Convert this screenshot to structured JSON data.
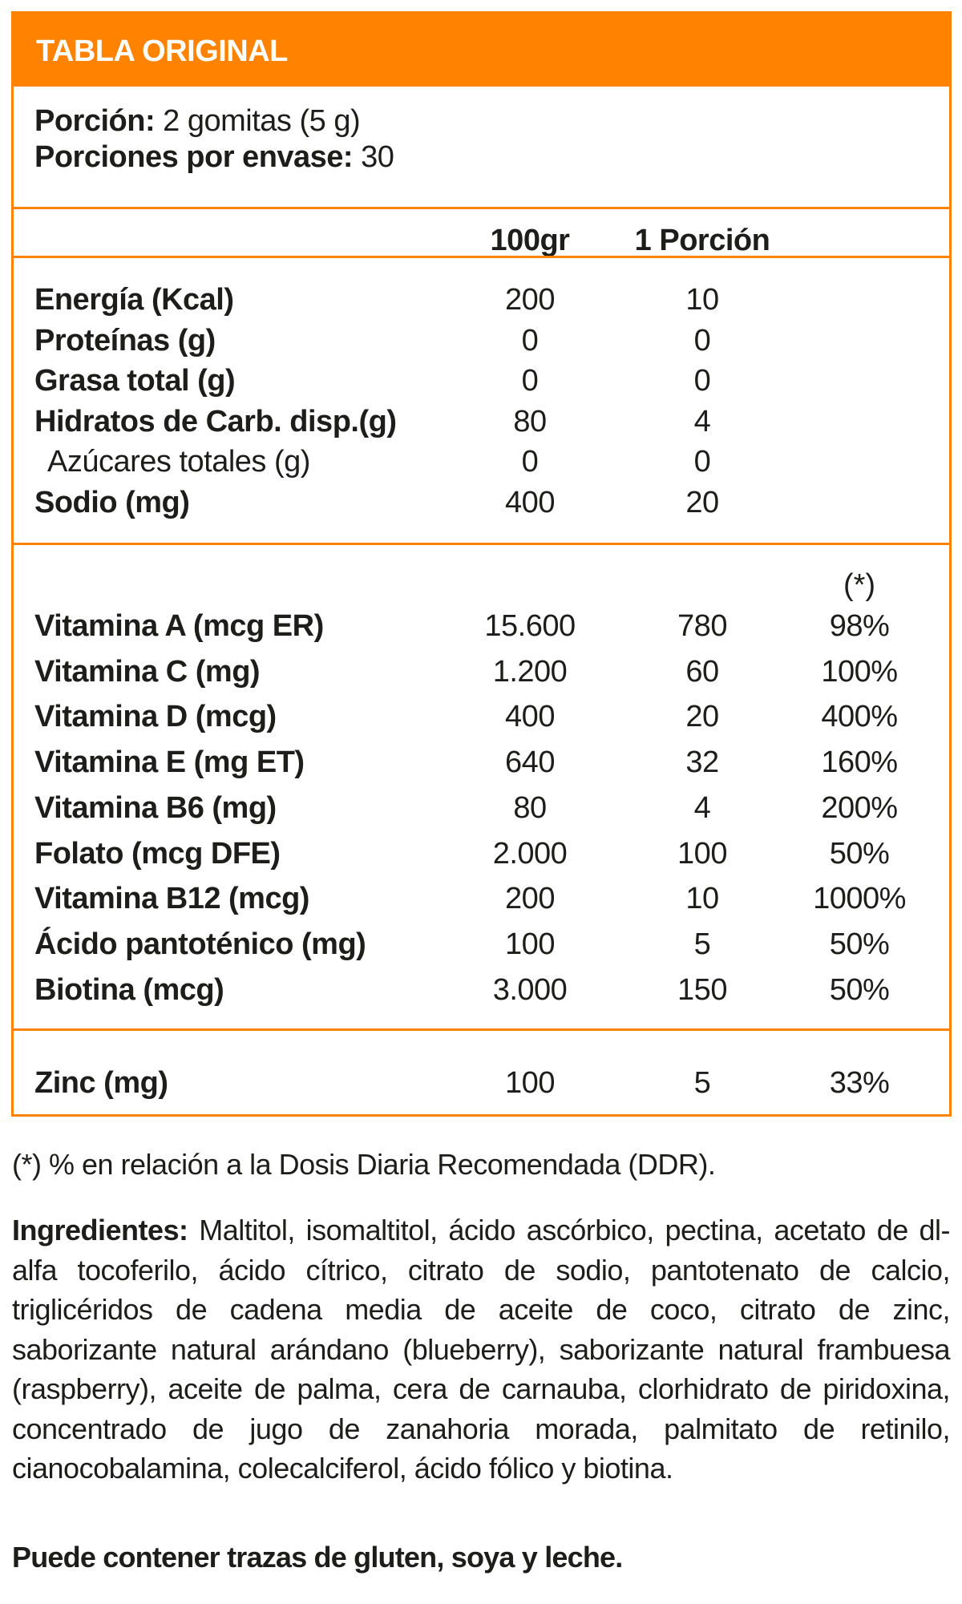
{
  "header": {
    "title": "TABLA ORIGINAL"
  },
  "serving": {
    "portion_label": "Porción:",
    "portion_value": " 2 gomitas (5 g)",
    "per_container_label": "Porciones por envase:",
    "per_container_value": " 30"
  },
  "columns": {
    "per100": "100gr",
    "per_portion": "1 Porción",
    "dv_marker": "(*)"
  },
  "macros": [
    {
      "label": "Energía (Kcal)",
      "per100": "200",
      "per_portion": "10",
      "sub": false
    },
    {
      "label": "Proteínas (g)",
      "per100": "0",
      "per_portion": "0",
      "sub": false
    },
    {
      "label": "Grasa total (g)",
      "per100": "0",
      "per_portion": "0",
      "sub": false
    },
    {
      "label": "Hidratos de Carb. disp.(g)",
      "per100": "80",
      "per_portion": "4",
      "sub": false
    },
    {
      "label": "Azúcares totales (g)",
      "per100": "0",
      "per_portion": "0",
      "sub": true
    },
    {
      "label": "Sodio (mg)",
      "per100": "400",
      "per_portion": "20",
      "sub": false
    }
  ],
  "vitamins": [
    {
      "label": "Vitamina A (mcg ER)",
      "per100": "15.600",
      "per_portion": "780",
      "dv": "98%"
    },
    {
      "label": "Vitamina C (mg)",
      "per100": "1.200",
      "per_portion": "60",
      "dv": "100%"
    },
    {
      "label": "Vitamina D (mcg)",
      "per100": "400",
      "per_portion": "20",
      "dv": "400%"
    },
    {
      "label": "Vitamina E (mg ET)",
      "per100": "640",
      "per_portion": "32",
      "dv": "160%"
    },
    {
      "label": "Vitamina B6 (mg)",
      "per100": "80",
      "per_portion": "4",
      "dv": "200%"
    },
    {
      "label": "Folato (mcg DFE)",
      "per100": "2.000",
      "per_portion": "100",
      "dv": "50%"
    },
    {
      "label": "Vitamina B12 (mcg)",
      "per100": "200",
      "per_portion": "10",
      "dv": "1000%"
    },
    {
      "label": "Ácido pantoténico (mg)",
      "per100": "100",
      "per_portion": "5",
      "dv": "50%"
    },
    {
      "label": "Biotina (mcg)",
      "per100": "3.000",
      "per_portion": "150",
      "dv": "50%"
    }
  ],
  "minerals": [
    {
      "label": "Zinc (mg)",
      "per100": "100",
      "per_portion": "5",
      "dv": "33%"
    }
  ],
  "footnote": "(*) % en relación a la Dosis Diaria Recomendada (DDR).",
  "ingredients": {
    "label": "Ingredientes:",
    "text": " Maltitol, isomaltitol, ácido ascórbico, pectina, acetato de dl-alfa tocoferilo, ácido cítrico, citrato de sodio, pantotenato de calcio, triglicéridos de cadena media de aceite de coco, citrato de zinc, saborizante natural arándano (blueberry), saborizante natural frambuesa (raspberry), aceite de palma, cera de carnauba, clorhidrato de piridoxina, concentrado de jugo de zanahoria morada, palmitato de retinilo,  cianocobalamina, colecalciferol, ácido fólico y biotina."
  },
  "allergen": "Puede contener trazas de gluten, soya y leche.",
  "colors": {
    "accent": "#FF8200",
    "text": "#1d1d1b",
    "header_text": "#ffffff"
  }
}
